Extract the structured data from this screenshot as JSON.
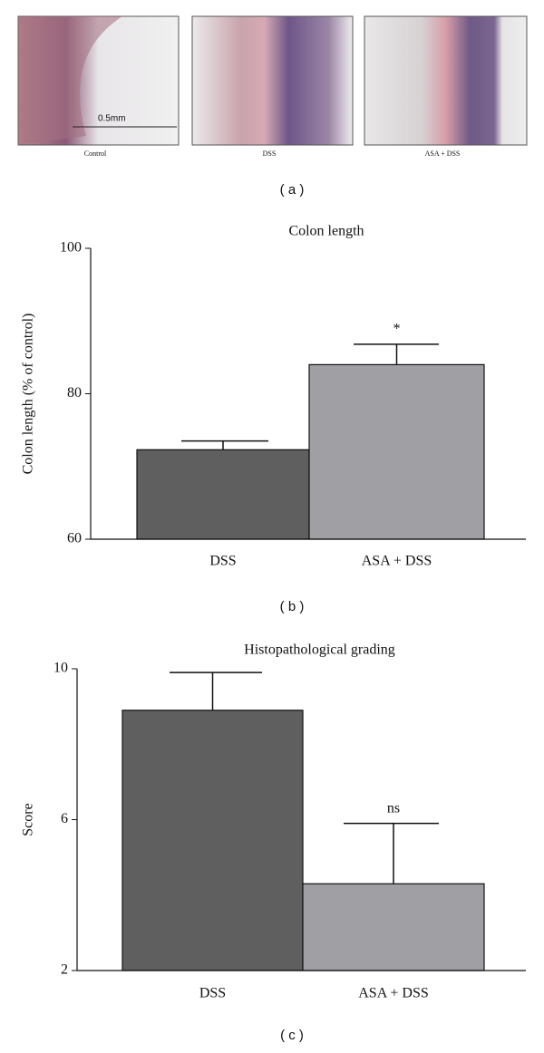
{
  "panel_a": {
    "captions": [
      "Control",
      "DSS",
      "ASA + DSS"
    ],
    "scale_bar": "0.5mm",
    "panel_label": "( a )"
  },
  "chart_data": [
    {
      "type": "bar",
      "title": "Colon length",
      "y_label": "Colon length (% of control)",
      "panel_label": "( b )",
      "categories": [
        "DSS",
        "ASA + DSS"
      ],
      "values": [
        72.3,
        84.0
      ],
      "errors": [
        1.2,
        2.8
      ],
      "colors": [
        "#5f5f5f",
        "#a09fa4"
      ],
      "ylim": [
        60,
        100
      ],
      "yticks": [
        60,
        80,
        100
      ],
      "annotations": [
        {
          "category": "ASA + DSS",
          "text": "*"
        }
      ]
    },
    {
      "type": "bar",
      "title": "Histopathological grading",
      "y_label": "Score",
      "panel_label": "( c )",
      "categories": [
        "DSS",
        "ASA + DSS"
      ],
      "values": [
        8.9,
        4.3
      ],
      "errors": [
        1.0,
        1.6
      ],
      "colors": [
        "#5f5f5f",
        "#a09fa4"
      ],
      "ylim": [
        2,
        10
      ],
      "yticks": [
        2,
        6,
        10
      ],
      "annotations": [
        {
          "category": "ASA + DSS",
          "text": "ns"
        }
      ]
    }
  ]
}
